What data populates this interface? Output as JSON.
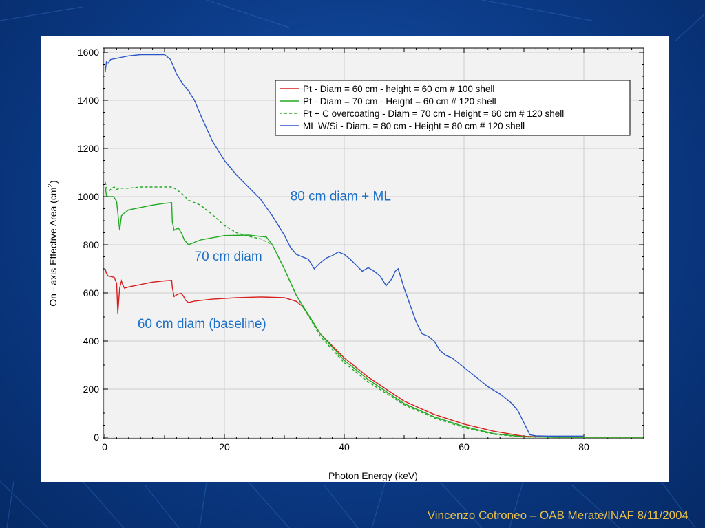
{
  "footer": {
    "credit": "Vincenzo Cotroneo – OAB Merate/INAF 8/11/2004"
  },
  "colors": {
    "red": "#d81f1f",
    "green": "#22aa22",
    "blue": "#2a56c6",
    "annotation": "#1c6fc8",
    "footer": "#e8c04a"
  },
  "chart_data": {
    "type": "line",
    "title": "",
    "xlabel": "Photon Energy (keV)",
    "ylabel_main": "On - axis Effective Area (cm",
    "ylabel_sup": "2",
    "ylabel_end": ")",
    "xlim": [
      0,
      90
    ],
    "ylim": [
      0,
      1600
    ],
    "xticks": [
      0,
      20,
      40,
      60,
      80
    ],
    "yticks": [
      0,
      200,
      400,
      600,
      800,
      1000,
      1200,
      1400,
      1600
    ],
    "grid": true,
    "legend_position": "top-right",
    "series": [
      {
        "name": "Pt - Diam = 60 cm - height = 60 cm # 100 shell",
        "color": "#d81f1f",
        "dash": false,
        "x": [
          0.1,
          0.3,
          0.6,
          1.0,
          1.6,
          2.0,
          2.2,
          2.5,
          2.8,
          3.0,
          3.3,
          4,
          6,
          8,
          10,
          11.2,
          11.3,
          11.6,
          12.2,
          12.8,
          13.2,
          13.5,
          14,
          15,
          18,
          22,
          26,
          30,
          32,
          33,
          34,
          36,
          40,
          44,
          50,
          55,
          60,
          65,
          70,
          75,
          80,
          90
        ],
        "y": [
          700,
          680,
          670,
          668,
          665,
          640,
          515,
          620,
          650,
          635,
          620,
          625,
          635,
          645,
          650,
          652,
          622,
          585,
          595,
          598,
          585,
          570,
          560,
          566,
          574,
          580,
          583,
          580,
          565,
          545,
          510,
          430,
          330,
          250,
          150,
          95,
          55,
          25,
          4,
          0,
          0,
          0
        ]
      },
      {
        "name": "Pt - Diam = 70 cm  - Height = 60 cm # 120 shell",
        "color": "#22aa22",
        "dash": false,
        "x": [
          0.1,
          0.3,
          0.6,
          1.0,
          1.5,
          2.0,
          2.5,
          2.8,
          3.2,
          4,
          6,
          8,
          10,
          11.2,
          11.3,
          11.6,
          12.3,
          12.9,
          13.3,
          14,
          16,
          20,
          24,
          27,
          28,
          30,
          32,
          34,
          36,
          40,
          44,
          50,
          55,
          60,
          65,
          70,
          75,
          80,
          90
        ],
        "y": [
          1040,
          1005,
          1000,
          1000,
          1000,
          980,
          860,
          920,
          930,
          945,
          955,
          965,
          972,
          975,
          895,
          860,
          870,
          845,
          820,
          800,
          820,
          838,
          840,
          832,
          800,
          700,
          590,
          510,
          430,
          320,
          240,
          140,
          85,
          45,
          15,
          2,
          0,
          0,
          0
        ]
      },
      {
        "name": "Pt + C overcoating - Diam = 70 cm - Height = 60 cm # 120 shell",
        "color": "#22aa22",
        "dash": true,
        "x": [
          0.1,
          0.4,
          0.8,
          1.2,
          1.6,
          2.0,
          2.5,
          3,
          4,
          6,
          8,
          10,
          11.2,
          12,
          13,
          14,
          16,
          18,
          20,
          22,
          24,
          26,
          28,
          30,
          32,
          34,
          36,
          40,
          44,
          50,
          55,
          60,
          65,
          70,
          75,
          80,
          90
        ],
        "y": [
          1060,
          1030,
          1025,
          1035,
          1040,
          1030,
          1035,
          1035,
          1035,
          1040,
          1040,
          1040,
          1040,
          1030,
          1010,
          985,
          965,
          925,
          880,
          850,
          835,
          825,
          800,
          700,
          590,
          505,
          420,
          310,
          230,
          135,
          80,
          40,
          12,
          1,
          0,
          0,
          0
        ]
      },
      {
        "name": "ML W/Si - Diam. = 80 cm -  Height = 80 cm # 120 shell",
        "color": "#2a56c6",
        "dash": false,
        "x": [
          0.1,
          0.3,
          0.6,
          1.0,
          2,
          3,
          4,
          6,
          8,
          10,
          11,
          12,
          13,
          14,
          15,
          16,
          18,
          20,
          22,
          24,
          26,
          28,
          30,
          31,
          32,
          33,
          34,
          35,
          36,
          37,
          38,
          39,
          40,
          41,
          42,
          43,
          44,
          45,
          46,
          47,
          48,
          48.5,
          49,
          49.5,
          50,
          51,
          52,
          53,
          54,
          55,
          56,
          57,
          58,
          59,
          60,
          62,
          64,
          66,
          68,
          69,
          70,
          71,
          72,
          74,
          76,
          78,
          80
        ],
        "y": [
          1520,
          1560,
          1555,
          1570,
          1575,
          1580,
          1585,
          1590,
          1590,
          1590,
          1570,
          1510,
          1470,
          1440,
          1400,
          1340,
          1230,
          1150,
          1090,
          1040,
          990,
          920,
          840,
          790,
          760,
          750,
          740,
          700,
          725,
          745,
          755,
          770,
          760,
          740,
          715,
          690,
          705,
          690,
          670,
          630,
          660,
          690,
          700,
          660,
          620,
          550,
          480,
          430,
          420,
          400,
          360,
          340,
          330,
          310,
          290,
          250,
          210,
          180,
          140,
          110,
          60,
          10,
          6,
          5,
          5,
          5,
          5
        ]
      }
    ],
    "annotations": [
      {
        "text": "80 cm diam + ML",
        "x": 31,
        "y": 985
      },
      {
        "text": "70 cm diam",
        "x": 15,
        "y": 735
      },
      {
        "text": "60 cm diam (baseline)",
        "x": 5.5,
        "y": 455
      }
    ]
  }
}
